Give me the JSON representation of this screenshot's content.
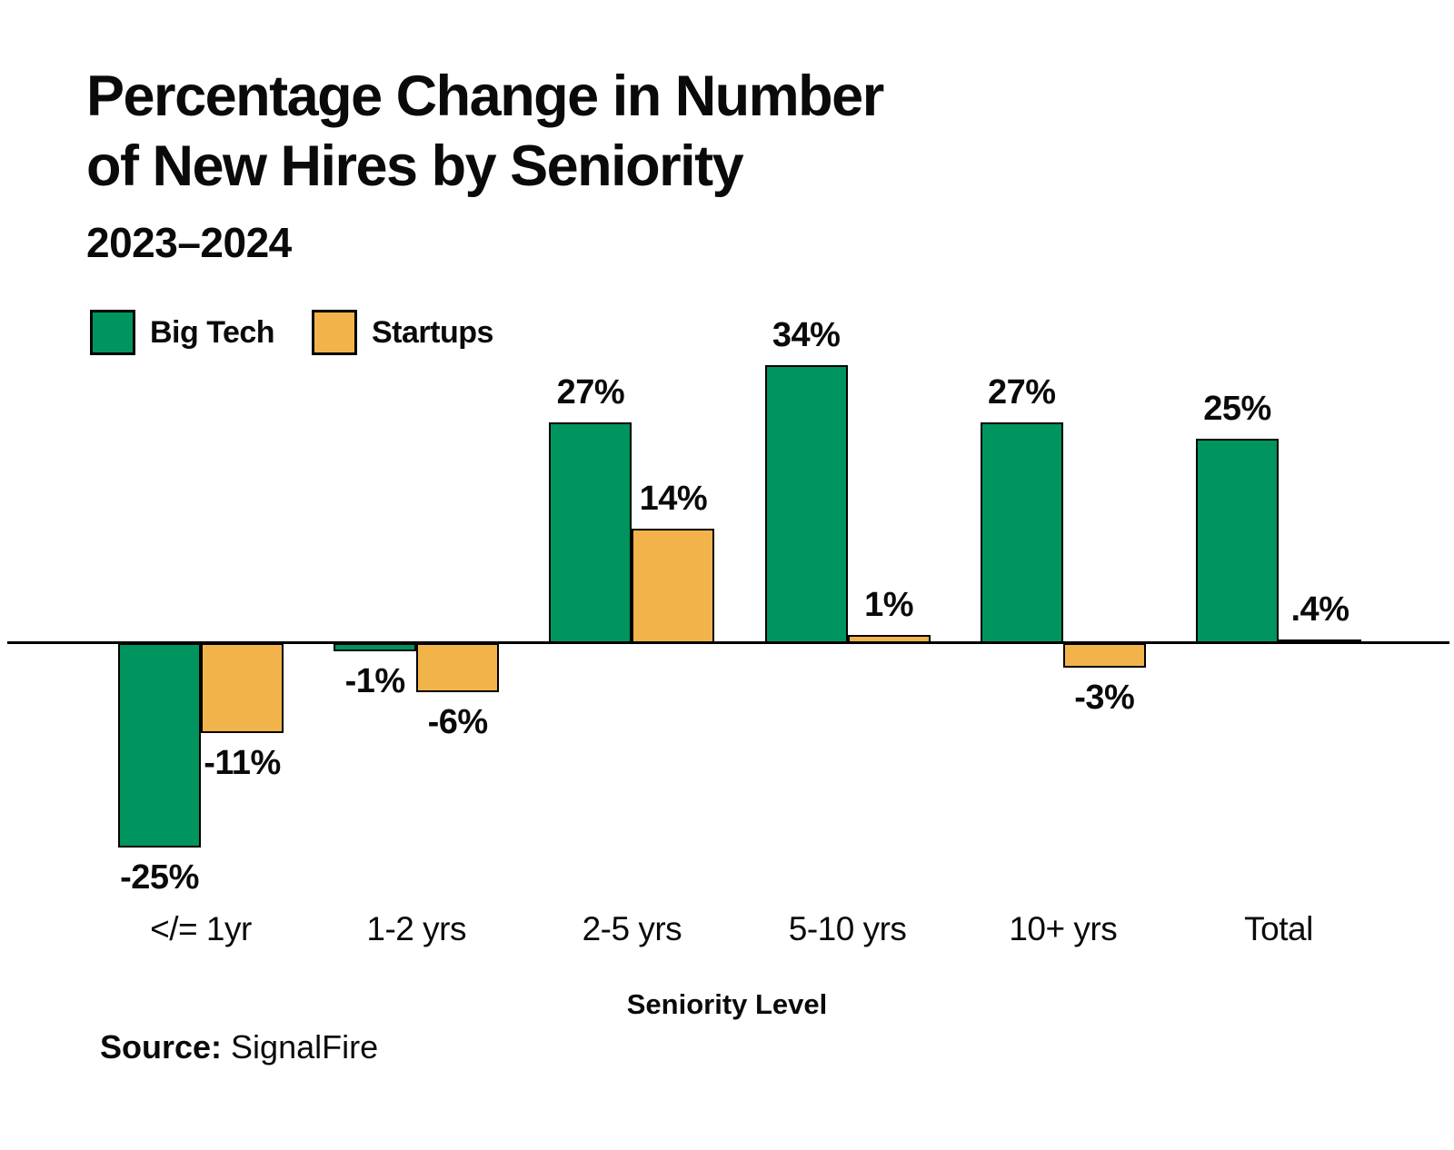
{
  "title": {
    "line1": "Percentage Change in Number",
    "line2": "of New Hires by Seniority",
    "subtitle": "2023–2024"
  },
  "legend": {
    "items": [
      {
        "label": "Big Tech",
        "color": "#00945E"
      },
      {
        "label": "Startups",
        "color": "#F2B44A"
      }
    ]
  },
  "xlabel": "Seniority Level",
  "source": {
    "prefix": "Source:",
    "company": "SignalFire"
  },
  "colors": {
    "big_tech": "#00945E",
    "startups": "#F2B44A",
    "bar_outline": "#000000",
    "text": "#0a0a0a"
  },
  "chart_data": {
    "type": "bar",
    "title": "Percentage Change in Number of New Hires by Seniority",
    "subtitle": "2023–2024",
    "xlabel": "Seniority Level",
    "ylabel": "",
    "categories": [
      "</= 1yr",
      "1-2 yrs",
      "2-5 yrs",
      "5-10 yrs",
      "10+ yrs",
      "Total"
    ],
    "series": [
      {
        "name": "Big Tech",
        "color": "#00945E",
        "values": [
          -25,
          -1,
          27,
          34,
          27,
          25
        ],
        "labels": [
          "-25%",
          "-1%",
          "27%",
          "34%",
          "27%",
          "25%"
        ]
      },
      {
        "name": "Startups",
        "color": "#F2B44A",
        "values": [
          -11,
          -6,
          14,
          1,
          -3,
          0.4
        ],
        "labels": [
          "-11%",
          "-6%",
          "14%",
          "1%",
          "-3%",
          ".4%"
        ]
      }
    ],
    "baseline": 0,
    "ylim": [
      -30,
      40
    ],
    "grid": false,
    "legend_position": "top-left",
    "source": "SignalFire"
  }
}
